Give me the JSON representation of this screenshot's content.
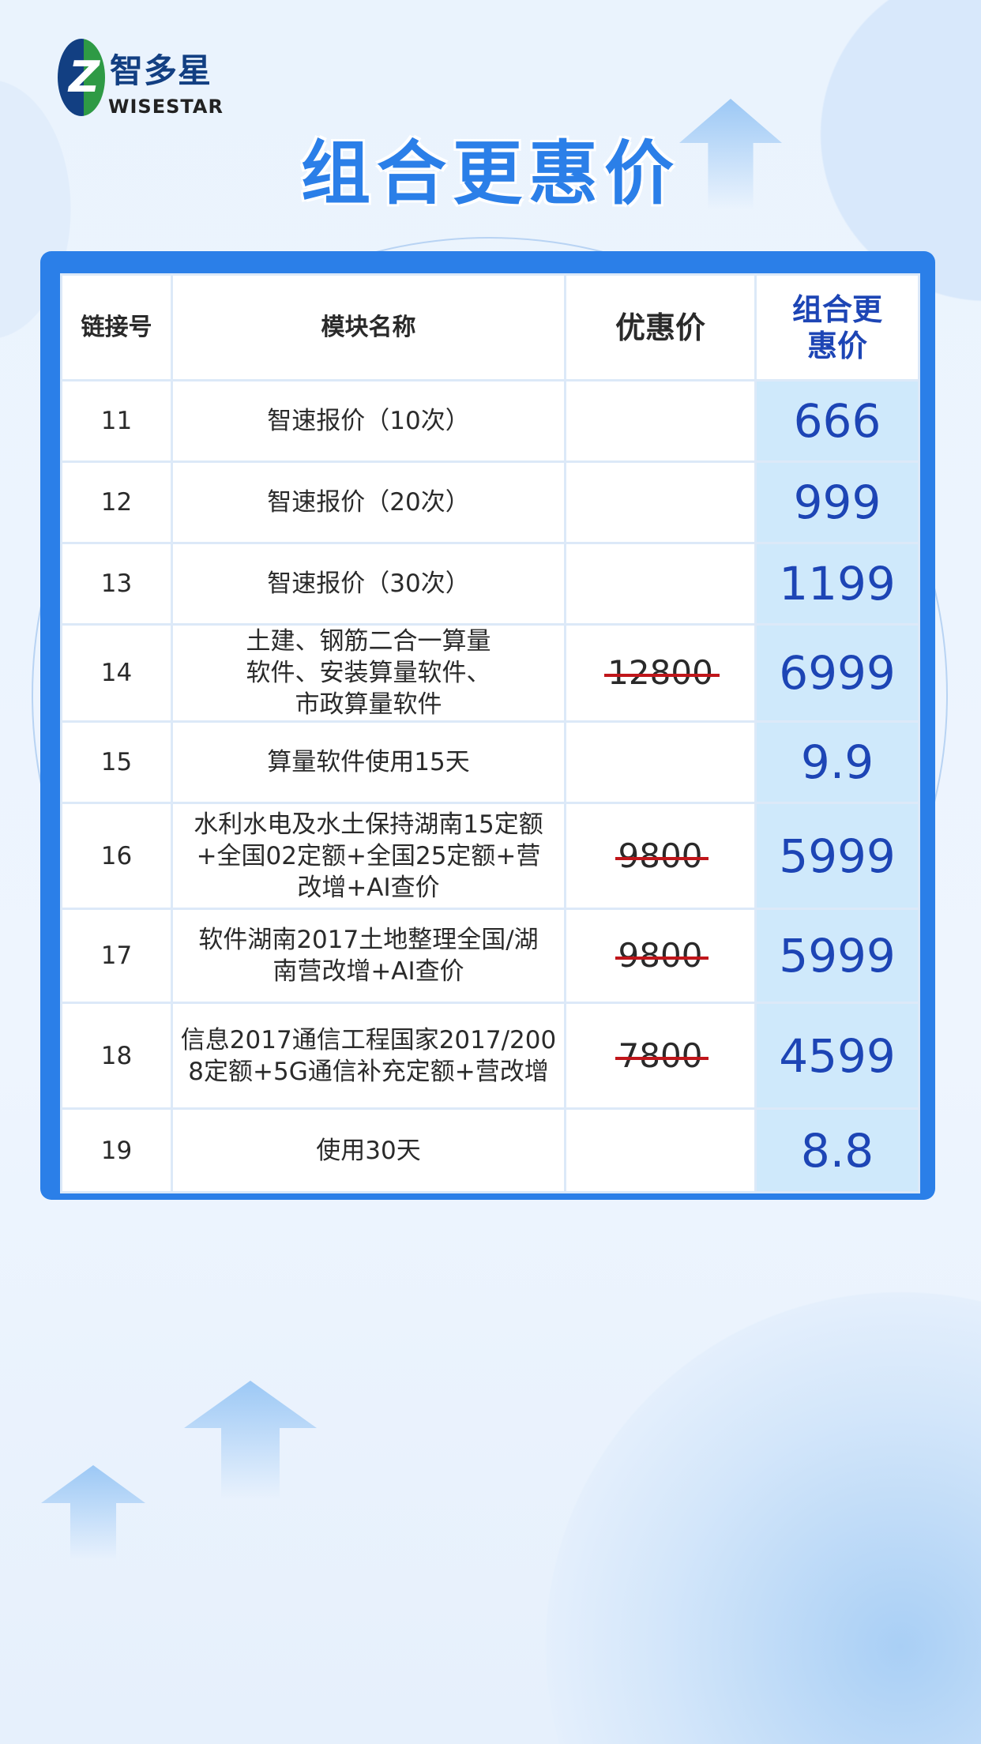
{
  "brand": {
    "name_cn": "智多星",
    "name_en": "WISESTAR",
    "logo_letter": "Z"
  },
  "title": "组合更惠价",
  "colors": {
    "accent": "#2b7fe8",
    "price": "#1d45b5",
    "strike": "#c0161b",
    "price_bg": "#cfe9fb"
  },
  "table": {
    "headers": {
      "id": "链接号",
      "name": "模块名称",
      "discount": "优惠价",
      "combo": "组合更惠价"
    },
    "rows": [
      {
        "id": "11",
        "name": "智速报价（10次）",
        "original": "",
        "combo": "666"
      },
      {
        "id": "12",
        "name": "智速报价（20次）",
        "original": "",
        "combo": "999"
      },
      {
        "id": "13",
        "name": "智速报价（30次）",
        "original": "",
        "combo": "1199"
      },
      {
        "id": "14",
        "name": "土建、钢筋二合一算量软件、安装算量软件、市政算量软件",
        "original": "12800",
        "combo": "6999"
      },
      {
        "id": "15",
        "name": "算量软件使用15天",
        "original": "",
        "combo": "9.9"
      },
      {
        "id": "16",
        "name": "水利水电及水土保持湖南15定额+全国02定额+全国25定额+营改增+AI查价",
        "original": "9800",
        "combo": "5999"
      },
      {
        "id": "17",
        "name": "软件湖南2017土地整理全国/湖南营改增+AI查价",
        "original": "9800",
        "combo": "5999"
      },
      {
        "id": "18",
        "name": "信息2017通信工程国家2017/2008定额+5G通信补充定额+营改增",
        "original": "7800",
        "combo": "4599"
      },
      {
        "id": "19",
        "name": "使用30天",
        "original": "",
        "combo": "8.8"
      }
    ]
  }
}
